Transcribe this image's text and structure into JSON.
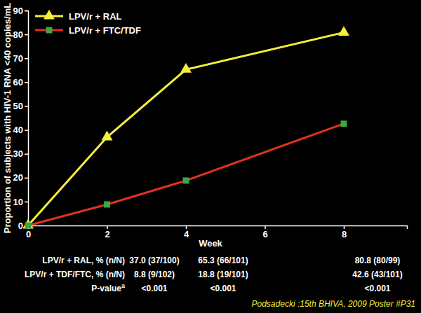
{
  "chart_data": {
    "type": "line",
    "x_label": "Week",
    "y_label": "Proportion of subjects with HIV-1 RNA <40 copies/mL",
    "x": [
      0,
      2,
      4,
      8
    ],
    "xlim": [
      0,
      9.6
    ],
    "xticks": [
      0,
      2,
      4,
      6,
      8
    ],
    "ylim": [
      0,
      90
    ],
    "yticks": [
      0,
      10,
      20,
      30,
      40,
      50,
      60,
      70,
      80,
      90
    ],
    "grid": false,
    "legend": "upper left",
    "series": [
      {
        "name": "LPV/r + RAL",
        "color": "#f4ef3a",
        "marker": "triangle",
        "values": [
          0,
          37.0,
          65.3,
          80.8
        ]
      },
      {
        "name": "LPV/r + FTC/TDF",
        "color": "#e3311f",
        "colors": [
          "#3aa844",
          "#3aa844",
          "#3aa844",
          "#3aa844"
        ],
        "marker": "square",
        "values": [
          0,
          8.8,
          18.8,
          42.6
        ]
      }
    ],
    "table": {
      "rows": [
        {
          "label": "LPV/r + RAL, % (n/N)",
          "cells": [
            null,
            "37.0 (37/100)",
            "65.3 (66/101)",
            "80.8 (80/99)"
          ]
        },
        {
          "label": "LPV/r + TDF/FTC, % (n/N)",
          "cells": [
            null,
            "8.8 (9/102)",
            "18.8 (19/101)",
            "42.6 (43/101)"
          ]
        },
        {
          "label": "P-value",
          "footnote_mark": "a",
          "cells": [
            null,
            "<0.001",
            "<0.001",
            "<0.001"
          ]
        }
      ]
    },
    "source": "Podsadecki :15th BHIVA, 2009 Poster #P31"
  }
}
